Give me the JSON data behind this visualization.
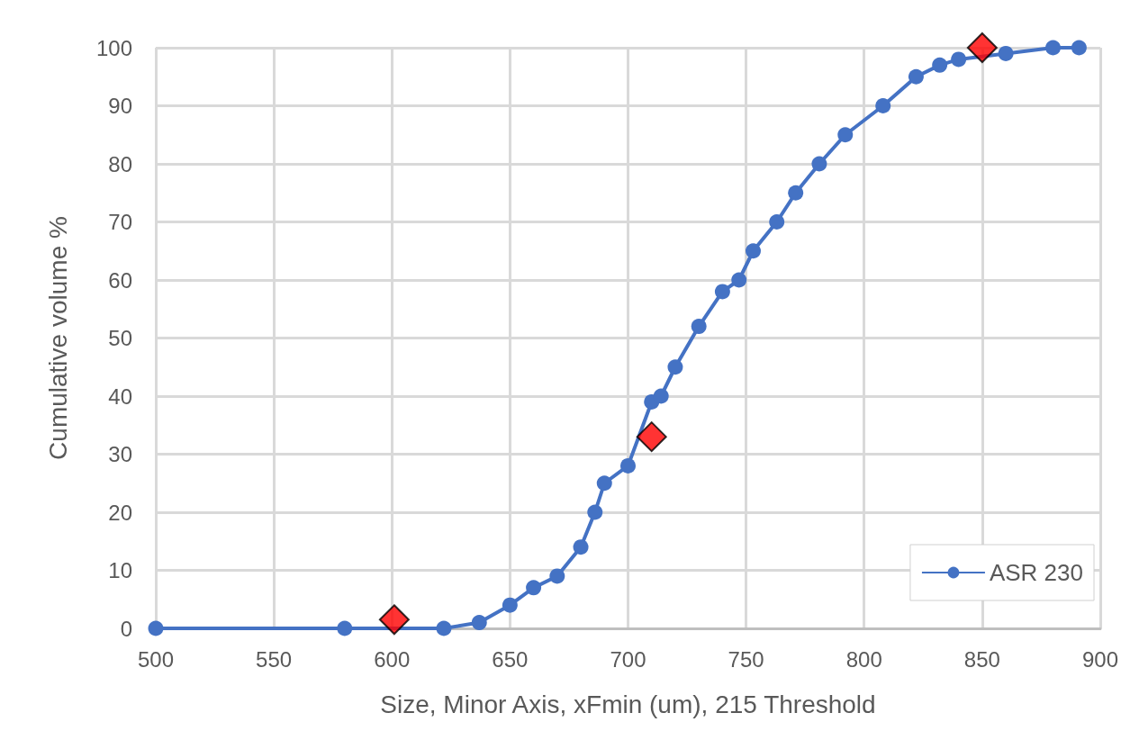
{
  "chart_data": {
    "type": "line",
    "xlabel": "Size, Minor Axis, xFmin (um), 215 Threshold",
    "ylabel": "Cumulative volume %",
    "xlim": [
      500,
      900
    ],
    "xticks": [
      500,
      550,
      600,
      650,
      700,
      750,
      800,
      850,
      900
    ],
    "ylim": [
      0,
      100
    ],
    "yticks": [
      0,
      10,
      20,
      30,
      40,
      50,
      60,
      70,
      80,
      90,
      100
    ],
    "grid": true,
    "legend": "bottom right",
    "marker": "circle",
    "line_style": "solid",
    "series": [
      {
        "name": "ASR 230",
        "color": "#4472c4",
        "x": [
          500,
          580,
          622,
          637,
          650,
          660,
          670,
          680,
          686,
          690,
          700,
          710,
          714,
          720,
          730,
          740,
          747,
          753,
          763,
          771,
          781,
          792,
          808,
          822,
          832,
          840,
          860,
          880,
          891
        ],
        "values": [
          0,
          0,
          0,
          1,
          4,
          7,
          9,
          14,
          20,
          25,
          28,
          39,
          40,
          45,
          52,
          58,
          60,
          65,
          70,
          75,
          80,
          85,
          90,
          95,
          97,
          98,
          99,
          100,
          100
        ]
      },
      {
        "type": "scatter",
        "marker": "diamond",
        "color": "#ff0000",
        "x": [
          601,
          710,
          850
        ],
        "values": [
          1.5,
          33,
          100
        ]
      }
    ]
  }
}
